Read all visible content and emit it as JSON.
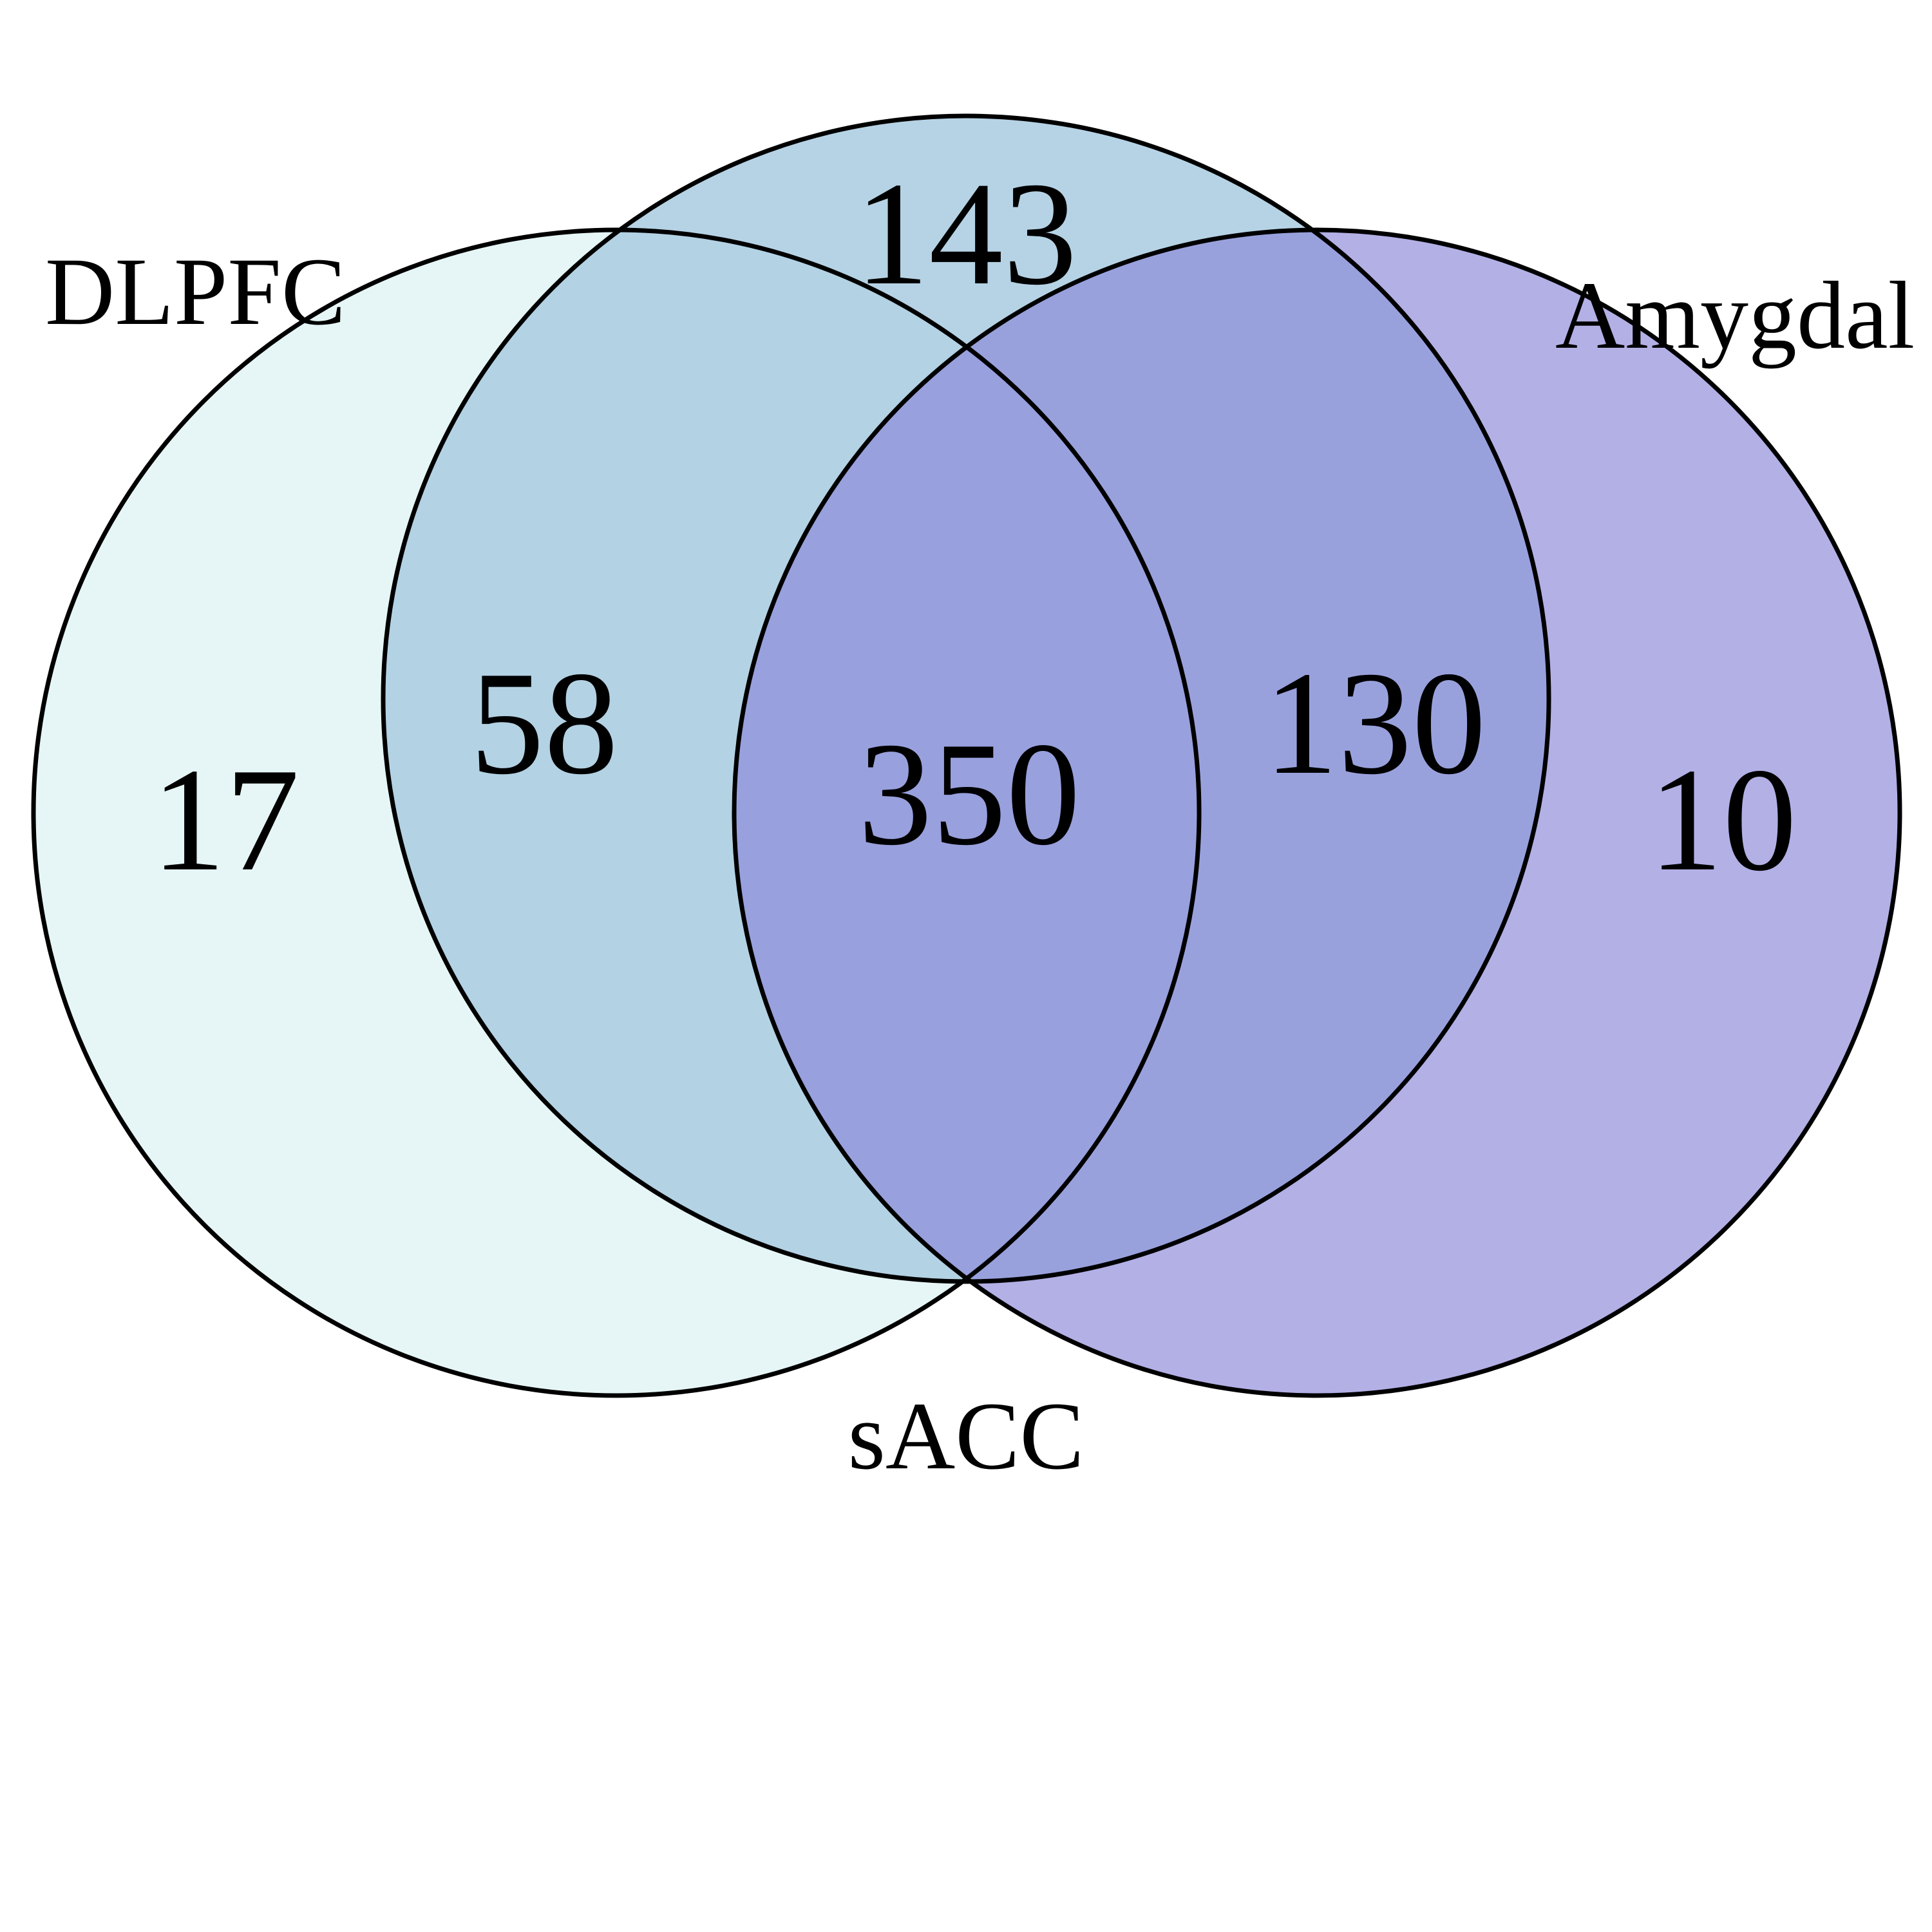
{
  "diagram": {
    "type": "venn-3",
    "sets": [
      {
        "label": "DLPFC",
        "color": "#e3f4f4",
        "opacity": 0.9
      },
      {
        "label": "sACC",
        "color": "#a9cbe1",
        "opacity": 0.85
      },
      {
        "label": "Amygdal",
        "color": "#8a86d8",
        "opacity": 0.65
      }
    ],
    "regions": {
      "dlpfc_only": "17",
      "dlpfc_sacc": "58",
      "sacc_only_top": "143",
      "all_three": "350",
      "sacc_amygdala": "130",
      "amygdala_only": "10"
    }
  }
}
